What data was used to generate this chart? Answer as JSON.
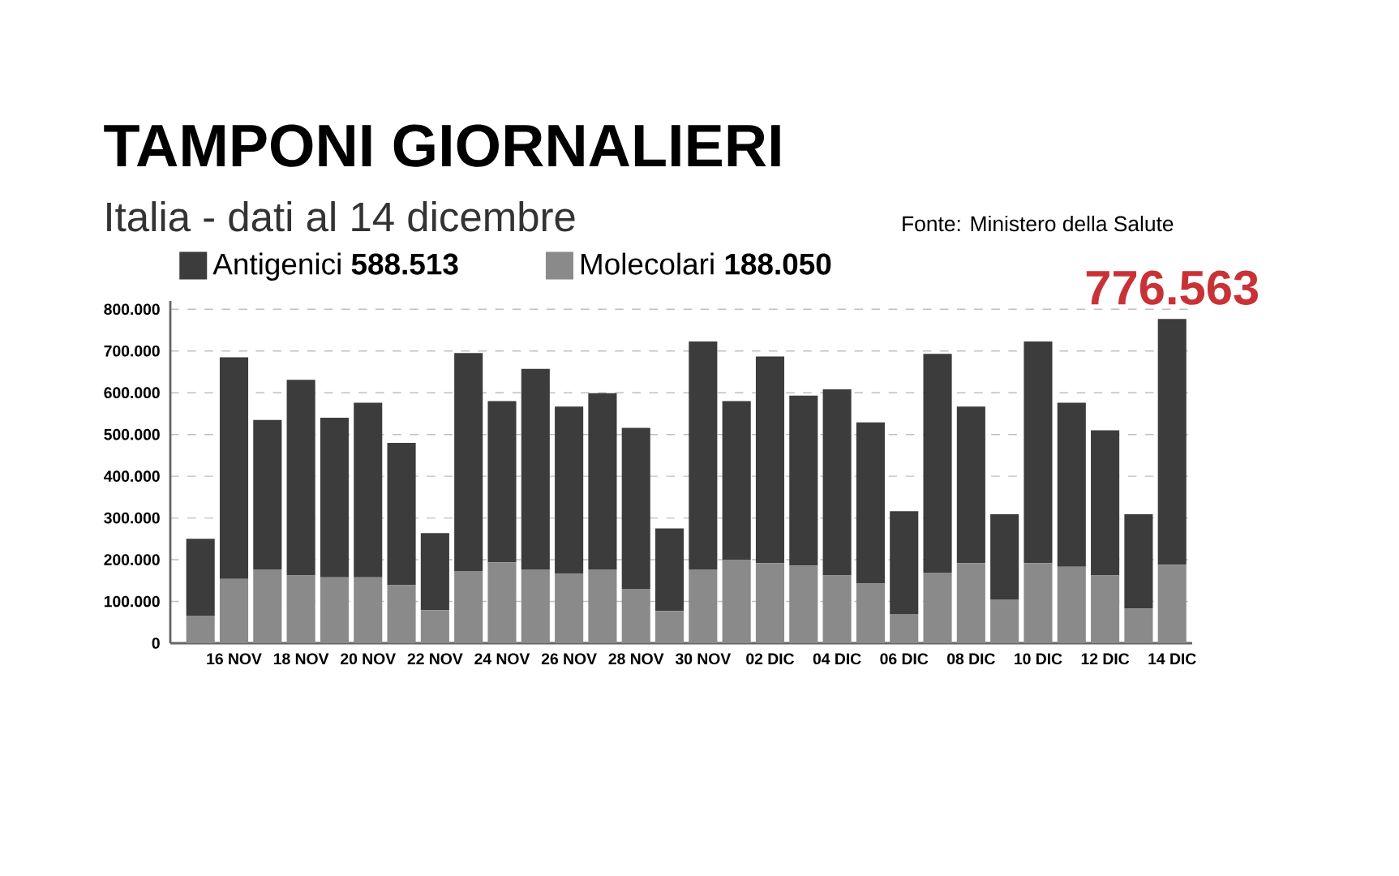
{
  "chart_data": {
    "type": "bar",
    "stacked": true,
    "title": "TAMPONI GIORNALIERI",
    "subtitle": "Italia - dati al 14 dicembre",
    "categories": [
      null,
      "16 NOV",
      null,
      "18 NOV",
      null,
      "20 NOV",
      null,
      "22 NOV",
      null,
      "24 NOV",
      null,
      "26 NOV",
      null,
      "28 NOV",
      null,
      "30 NOV",
      null,
      "02 DIC",
      null,
      "04 DIC",
      null,
      "06 DIC",
      null,
      "08 DIC",
      null,
      "10 DIC",
      null,
      "12 DIC",
      null,
      "14 DIC"
    ],
    "series": [
      {
        "name": "Molecolari **188.050**",
        "color": "#8a8a8a",
        "values": [
          66000,
          154000,
          177000,
          162000,
          158000,
          158000,
          139000,
          79000,
          173000,
          194000,
          177000,
          166000,
          177000,
          130000,
          77000,
          177000,
          200000,
          192000,
          186000,
          162000,
          143000,
          70000,
          169000,
          192000,
          105000,
          192000,
          183000,
          162000,
          83000,
          188050
        ]
      },
      {
        "name": "Antigenici **588.513**",
        "color": "#3c3c3c",
        "values": [
          184000,
          531000,
          358000,
          469000,
          382000,
          418000,
          341000,
          185000,
          522000,
          386000,
          480000,
          401000,
          422000,
          386000,
          198000,
          546000,
          380000,
          495000,
          407000,
          446000,
          386000,
          246000,
          524000,
          375000,
          204000,
          531000,
          393000,
          348000,
          226000,
          588513
        ]
      }
    ],
    "ylim": [
      0,
      820000
    ],
    "yticks": [
      {
        "value": 0,
        "label": "0"
      },
      {
        "value": 100000,
        "label": "100.000"
      },
      {
        "value": 200000,
        "label": "200.000"
      },
      {
        "value": 300000,
        "label": "300.000"
      },
      {
        "value": 400000,
        "label": "400.000"
      },
      {
        "value": 500000,
        "label": "500.000"
      },
      {
        "value": 600000,
        "label": "600.000"
      },
      {
        "value": 700000,
        "label": "700.000"
      },
      {
        "value": 800000,
        "label": "800.000"
      }
    ],
    "grid": "y",
    "legend": "top left",
    "annotations": [
      {
        "text": "776.563",
        "x": "14 DIC",
        "y": 776563
      },
      "Fonte: Ministero della Salute"
    ]
  }
}
